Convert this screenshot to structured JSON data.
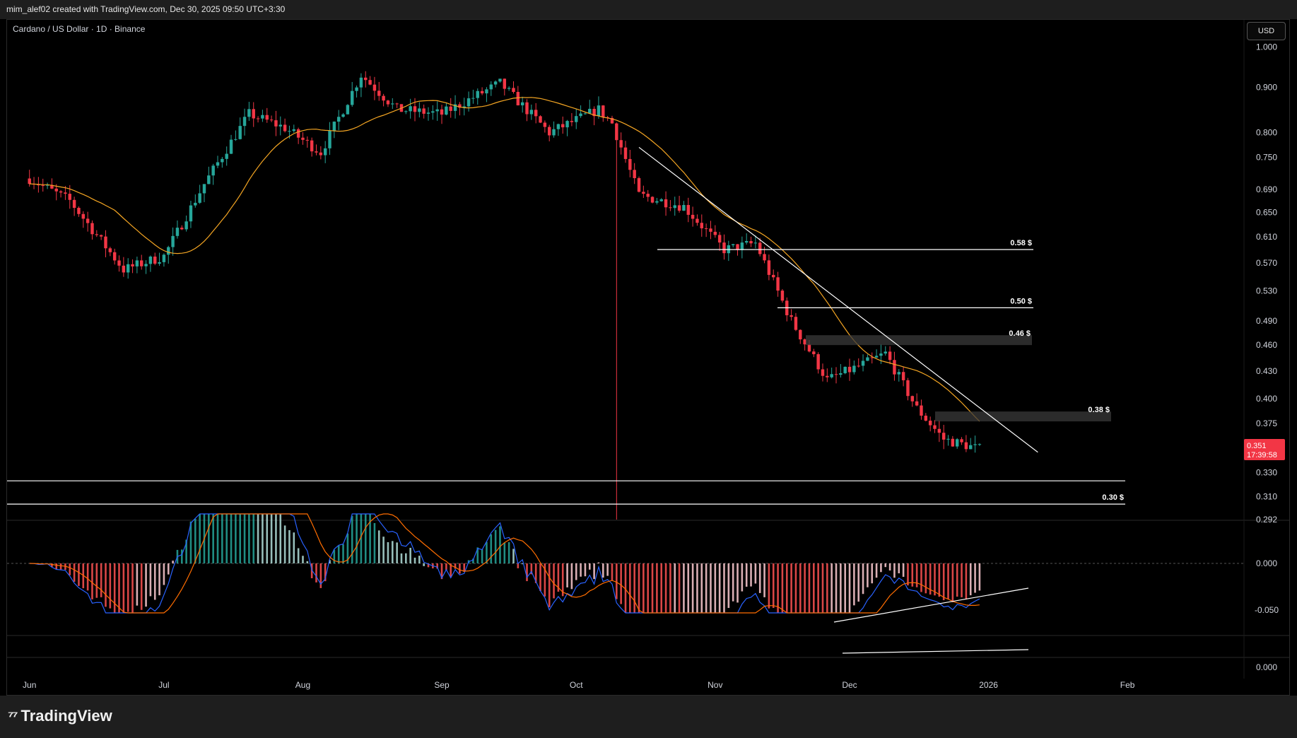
{
  "header": {
    "caption": "mim_alef02 created with TradingView.com, Dec 30, 2025 09:50 UTC+3:30"
  },
  "brand": {
    "name": "TradingView",
    "logo_icon": "tradingview-logo-icon"
  },
  "chart": {
    "symbol_title": "Cardano / US Dollar · 1D · Binance",
    "currency": "USD",
    "last_price_label": "0.351",
    "countdown": "17:39:58",
    "colors": {
      "up": "#26a69a",
      "down": "#f23645",
      "ma": "#f5a623",
      "macd_line": "#2962ff",
      "signal_line": "#ff6d00",
      "trendline": "#ffffff",
      "zone": "#3a3a3a"
    }
  },
  "chart_data": {
    "type": "candlestick",
    "x_axis": {
      "ticks": [
        "Jun",
        "Jul",
        "Aug",
        "Sep",
        "Oct",
        "Nov",
        "Dec",
        "2026",
        "Feb"
      ]
    },
    "y_axis": {
      "scale": "log",
      "range": [
        0.292,
        1.05
      ],
      "ticks": [
        "1.000",
        "0.900",
        "0.800",
        "0.750",
        "0.690",
        "0.650",
        "0.610",
        "0.570",
        "0.530",
        "0.490",
        "0.460",
        "0.430",
        "0.400",
        "0.375",
        "0.330",
        "0.310",
        "0.292"
      ]
    },
    "price_path": {
      "dates": [
        "2025-06-01",
        "2025-06-10",
        "2025-06-22",
        "2025-07-01",
        "2025-07-10",
        "2025-07-20",
        "2025-07-28",
        "2025-08-05",
        "2025-08-14",
        "2025-08-22",
        "2025-09-01",
        "2025-09-14",
        "2025-09-25",
        "2025-10-06",
        "2025-10-09",
        "2025-10-15",
        "2025-10-25",
        "2025-11-03",
        "2025-11-10",
        "2025-11-18",
        "2025-11-26",
        "2025-12-05",
        "2025-12-09",
        "2025-12-16",
        "2025-12-22",
        "2025-12-30"
      ],
      "close": [
        0.71,
        0.67,
        0.56,
        0.58,
        0.7,
        0.84,
        0.81,
        0.76,
        0.93,
        0.85,
        0.84,
        0.91,
        0.8,
        0.85,
        0.82,
        0.68,
        0.66,
        0.59,
        0.6,
        0.49,
        0.42,
        0.44,
        0.45,
        0.39,
        0.36,
        0.351
      ]
    },
    "indicators": [
      {
        "name": "",
        "type": "moving-average-line"
      },
      {
        "name": "",
        "type": "macd",
        "y_ticks": [
          "0.000",
          "-0.050"
        ]
      },
      {
        "name": "",
        "type": "oscillator",
        "y_ticks": [
          "0.000"
        ]
      }
    ],
    "annotations": {
      "levels": [
        {
          "label": "0.58 $",
          "price": 0.59
        },
        {
          "label": "0.50 $",
          "price": 0.507
        },
        {
          "label": "0.46 $",
          "price": 0.466,
          "zone": true
        },
        {
          "label": "0.38 $",
          "price": 0.382,
          "zone": true
        },
        {
          "label": "",
          "price": 0.323
        },
        {
          "label": "0.30 $",
          "price": 0.304
        }
      ],
      "trendline": {
        "from": {
          "date": "2025-10-15",
          "price": 0.77
        },
        "to": {
          "date": "2026-01-12",
          "price": 0.348
        }
      }
    }
  }
}
